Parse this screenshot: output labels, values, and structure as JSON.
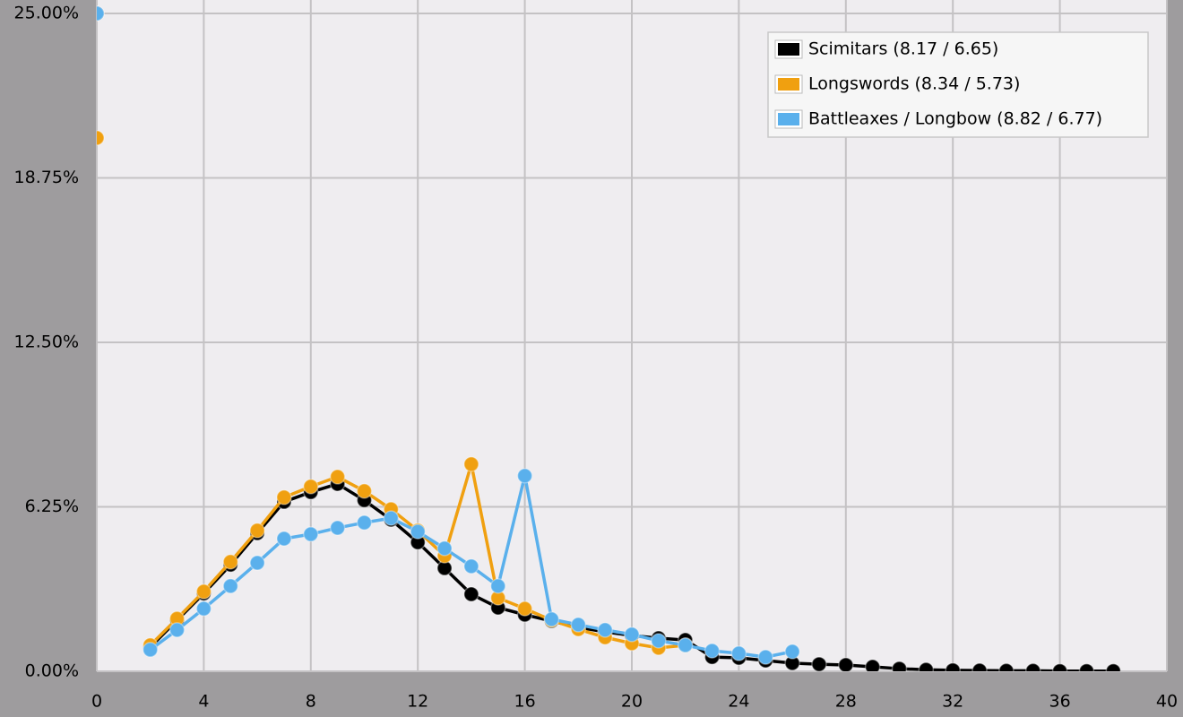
{
  "chart_data": {
    "type": "line",
    "x": [
      0,
      1,
      2,
      3,
      4,
      5,
      6,
      7,
      8,
      9,
      10,
      11,
      12,
      13,
      14,
      15,
      16,
      17,
      18,
      19,
      20,
      21,
      22,
      23,
      24,
      25,
      26,
      27,
      28,
      29,
      30,
      31,
      32,
      33,
      34,
      35,
      36,
      37,
      38
    ],
    "series": [
      {
        "name": "Scimitars (8.17 / 6.65)",
        "color": "#000000",
        "values": [
          25,
          null,
          0.92,
          1.94,
          2.96,
          4.05,
          5.25,
          6.44,
          6.81,
          7.12,
          6.5,
          5.76,
          4.9,
          3.92,
          2.93,
          2.42,
          2.15,
          1.91,
          1.67,
          1.5,
          1.36,
          1.26,
          1.19,
          0.54,
          0.51,
          0.41,
          0.31,
          0.27,
          0.24,
          0.17,
          0.1,
          0.06,
          0.04,
          0.03,
          0.02,
          0.02,
          0.01,
          0.01,
          0.01
        ]
      },
      {
        "name": "Longswords (8.34 / 5.73)",
        "color": "#f0a010",
        "values": [
          20.27,
          null,
          0.99,
          2.0,
          3.03,
          4.16,
          5.35,
          6.61,
          7.02,
          7.39,
          6.85,
          6.16,
          5.35,
          4.39,
          7.87,
          2.79,
          2.38,
          1.94,
          1.6,
          1.29,
          1.06,
          0.89,
          0.99,
          null,
          null,
          null,
          null,
          null,
          null,
          null,
          null,
          null,
          null,
          null,
          null,
          null,
          null,
          null,
          null
        ]
      },
      {
        "name": "Battleaxes / Longbow (8.82 / 6.77)",
        "color": "#5ab0ec",
        "values": [
          25,
          null,
          0.82,
          1.57,
          2.38,
          3.24,
          4.12,
          5.04,
          5.21,
          5.45,
          5.65,
          5.82,
          5.31,
          4.67,
          3.99,
          3.24,
          7.43,
          1.98,
          1.77,
          1.57,
          1.4,
          1.16,
          0.99,
          0.78,
          0.68,
          0.54,
          0.75,
          null,
          null,
          null,
          null,
          null,
          null,
          null,
          null,
          null,
          null,
          null,
          null
        ]
      }
    ],
    "xlim": [
      0,
      40
    ],
    "xticks": [
      0,
      4,
      8,
      12,
      16,
      20,
      24,
      28,
      32,
      36,
      40
    ],
    "ylim": [
      0,
      25
    ],
    "yticks": [
      {
        "value": 0,
        "label": "0.00%"
      },
      {
        "value": 6.25,
        "label": "6.25%"
      },
      {
        "value": 12.5,
        "label": "12.50%"
      },
      {
        "value": 18.75,
        "label": "18.75%"
      },
      {
        "value": 25,
        "label": "25.00%"
      }
    ],
    "grid": true,
    "legend": "top-right"
  }
}
